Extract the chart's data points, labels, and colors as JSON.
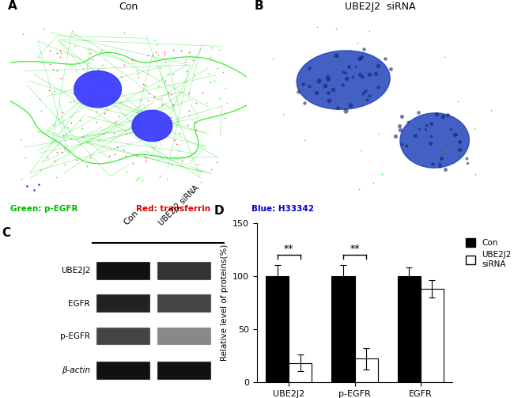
{
  "panel_A_label": "A",
  "panel_B_label": "B",
  "panel_C_label": "C",
  "panel_D_label": "D",
  "panel_A_title": "Con",
  "panel_B_title": "UBE2J2  siRNA",
  "caption_green": "Green: p-EGFR",
  "caption_red": "Red: transferrin",
  "caption_blue": "Blue: H33342",
  "western_labels": [
    "UBE2J2",
    "EGFR",
    "p-EGFR",
    "β-actin"
  ],
  "bar_categories": [
    "UBE2J2",
    "p-EGFR",
    "EGFR"
  ],
  "con_values": [
    100,
    100,
    100
  ],
  "sirna_values": [
    18,
    22,
    88
  ],
  "con_errors": [
    10,
    10,
    8
  ],
  "sirna_errors": [
    8,
    10,
    8
  ],
  "ylim": [
    0,
    150
  ],
  "yticks": [
    0,
    50,
    100,
    150
  ],
  "ylabel": "Relative level of proteins(%)",
  "legend_con": "Con",
  "legend_sirna": "UBE2J2\nsiRNA",
  "sig_pairs": [
    0,
    1
  ],
  "sig_label": "**",
  "bar_color_con": "#000000",
  "bar_color_sirna": "#ffffff",
  "bar_width": 0.35,
  "background_color": "#ffffff"
}
